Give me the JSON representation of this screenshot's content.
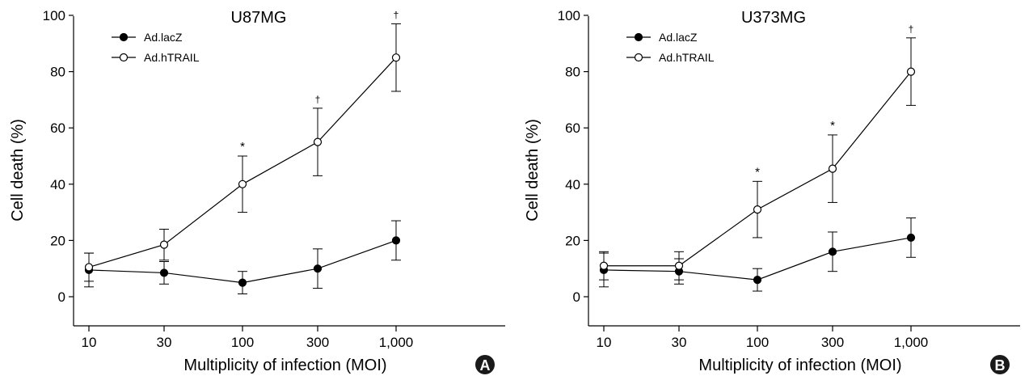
{
  "chart_data": [
    {
      "type": "line",
      "panel_label": "A",
      "title": "U87MG",
      "xlabel": "Multiplicity of infection (MOI)",
      "ylabel": "Cell death (%)",
      "ylim": [
        -10,
        100
      ],
      "yticks": [
        "0",
        "20",
        "40",
        "60",
        "80",
        "100"
      ],
      "categories": [
        "10",
        "30",
        "100",
        "300",
        "1,000"
      ],
      "grid": false,
      "legend_position": "top-left",
      "series": [
        {
          "name": "Ad.lacZ",
          "marker": "filled-circle",
          "values": [
            9.5,
            8.5,
            5.0,
            10.0,
            20.0
          ],
          "errors": [
            6.0,
            4.0,
            4.0,
            7.0,
            7.0
          ]
        },
        {
          "name": "Ad.hTRAIL",
          "marker": "open-circle",
          "values": [
            10.5,
            18.5,
            40.0,
            55.0,
            85.0
          ],
          "errors": [
            5.0,
            5.5,
            10.0,
            12.0,
            12.0
          ],
          "significance": [
            "",
            "",
            "*",
            "†",
            "†"
          ]
        }
      ]
    },
    {
      "type": "line",
      "panel_label": "B",
      "title": "U373MG",
      "xlabel": "Multiplicity of infection (MOI)",
      "ylabel": "Cell death (%)",
      "ylim": [
        -10,
        100
      ],
      "yticks": [
        "0",
        "20",
        "40",
        "60",
        "80",
        "100"
      ],
      "categories": [
        "10",
        "30",
        "100",
        "300",
        "1,000"
      ],
      "grid": false,
      "legend_position": "top-left",
      "series": [
        {
          "name": "Ad.lacZ",
          "marker": "filled-circle",
          "values": [
            9.5,
            9.0,
            6.0,
            16.0,
            21.0
          ],
          "errors": [
            6.0,
            4.5,
            4.0,
            7.0,
            7.0
          ]
        },
        {
          "name": "Ad.hTRAIL",
          "marker": "open-circle",
          "values": [
            11.0,
            11.0,
            31.0,
            45.5,
            80.0
          ],
          "errors": [
            5.0,
            5.0,
            10.0,
            12.0,
            12.0
          ],
          "significance": [
            "",
            "",
            "*",
            "*",
            "†"
          ]
        }
      ]
    }
  ]
}
